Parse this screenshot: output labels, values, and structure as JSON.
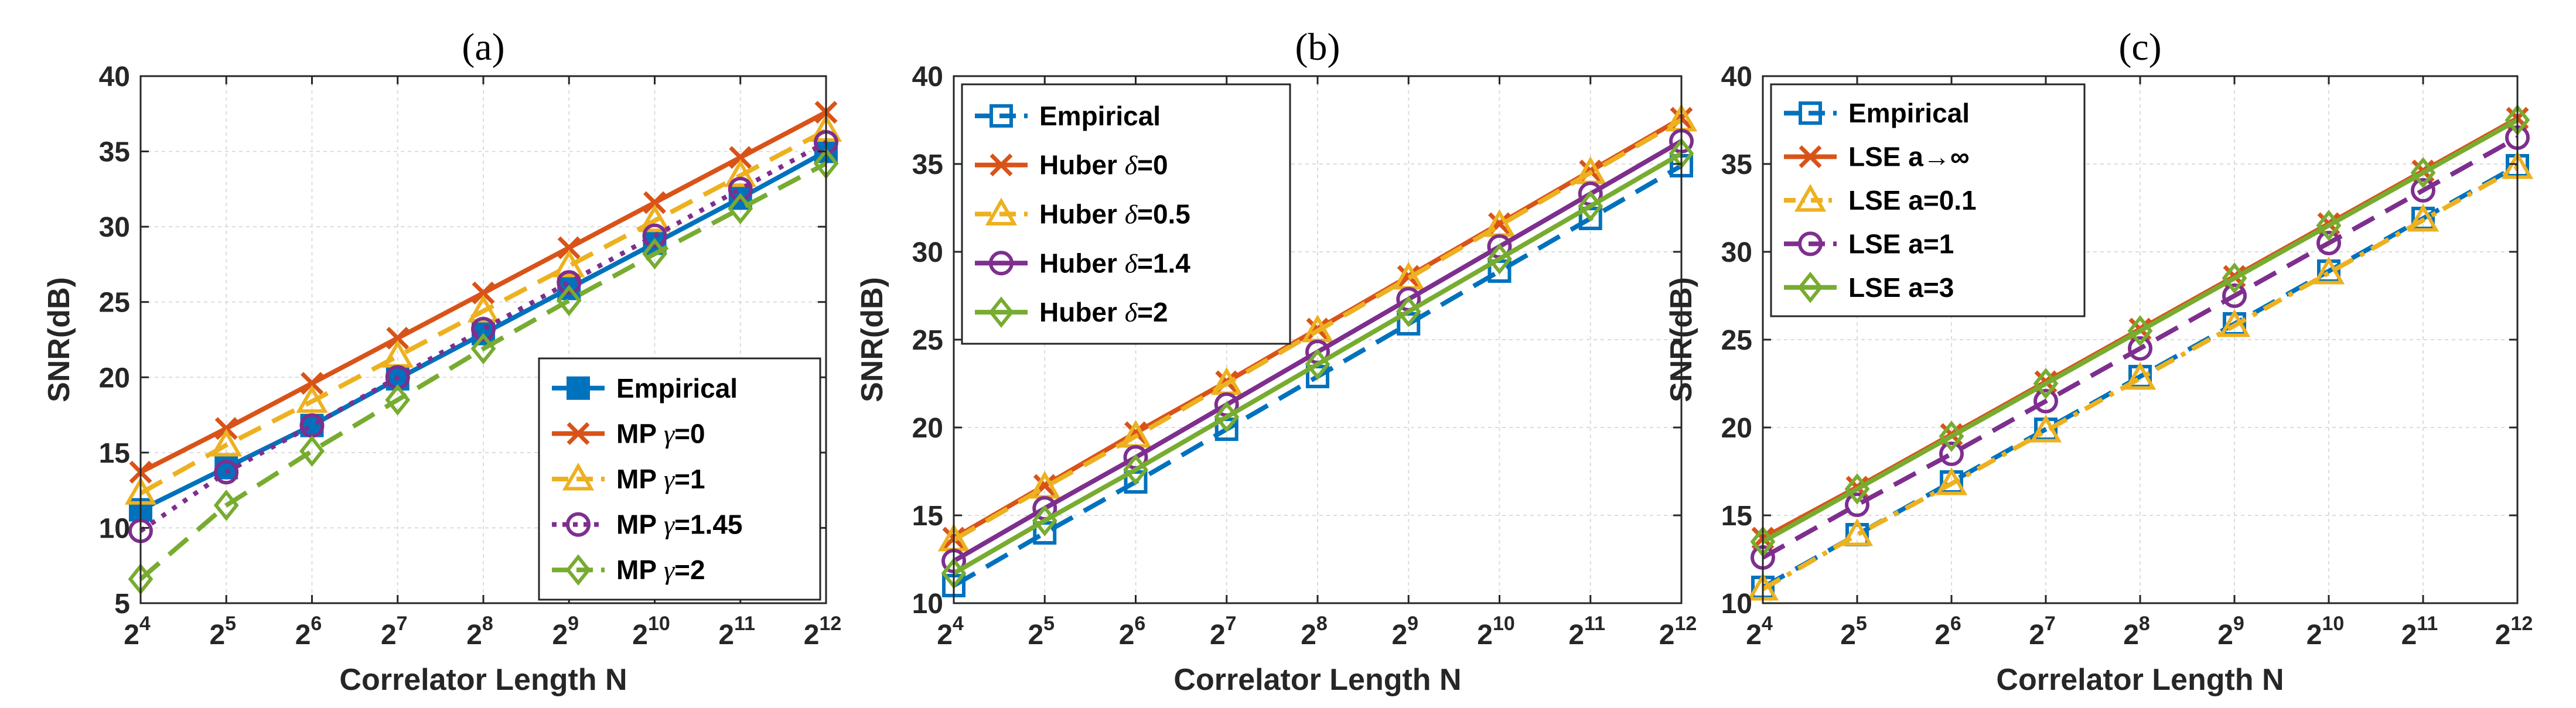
{
  "chart_data": [
    {
      "type": "line",
      "title": "(a)",
      "xlabel": "Correlator Length N",
      "ylabel": "SNR(dB)",
      "x": [
        4,
        5,
        6,
        7,
        8,
        9,
        10,
        11,
        12
      ],
      "x_tick_base": "2",
      "x_tick_exponents": [
        "4",
        "5",
        "6",
        "7",
        "8",
        "9",
        "10",
        "11",
        "12"
      ],
      "ylim": [
        5,
        40
      ],
      "yticks": [
        5,
        10,
        15,
        20,
        25,
        30,
        35,
        40
      ],
      "grid": true,
      "legend_position": "bottom-right",
      "series": [
        {
          "name": "Empirical",
          "legend_parts": [
            "Empirical"
          ],
          "color": "#0072BD",
          "dash": "solid",
          "marker": "square-filled",
          "values": [
            11.2,
            14.0,
            16.8,
            19.9,
            22.9,
            25.9,
            28.9,
            31.9,
            35.0
          ]
        },
        {
          "name": "MP γ=0",
          "legend_parts": [
            "MP ",
            "γ",
            "=0"
          ],
          "color": "#D95319",
          "dash": "solid",
          "marker": "x",
          "values": [
            13.7,
            16.6,
            19.6,
            22.6,
            25.6,
            28.6,
            31.6,
            34.6,
            37.6
          ]
        },
        {
          "name": "MP γ=1",
          "legend_parts": [
            "MP ",
            "γ",
            "=1"
          ],
          "color": "#EDB120",
          "dash": "dashed",
          "marker": "triangle",
          "values": [
            12.3,
            15.5,
            18.4,
            21.4,
            24.4,
            27.4,
            30.4,
            33.4,
            36.4
          ]
        },
        {
          "name": "MP γ=1.45",
          "legend_parts": [
            "MP ",
            "γ",
            "=1.45"
          ],
          "color": "#7E2F8E",
          "dash": "dotted",
          "marker": "circle",
          "values": [
            9.8,
            13.7,
            16.8,
            20.0,
            23.2,
            26.3,
            29.4,
            32.5,
            35.6
          ]
        },
        {
          "name": "MP γ=2",
          "legend_parts": [
            "MP ",
            "γ",
            "=2"
          ],
          "color": "#77AC30",
          "dash": "dashed",
          "marker": "diamond",
          "values": [
            6.6,
            11.5,
            15.1,
            18.5,
            21.9,
            25.1,
            28.2,
            31.2,
            34.2
          ]
        }
      ]
    },
    {
      "type": "line",
      "title": "(b)",
      "xlabel": "Correlator Length N",
      "ylabel": "SNR(dB)",
      "x": [
        4,
        5,
        6,
        7,
        8,
        9,
        10,
        11,
        12
      ],
      "x_tick_base": "2",
      "x_tick_exponents": [
        "4",
        "5",
        "6",
        "7",
        "8",
        "9",
        "10",
        "11",
        "12"
      ],
      "ylim": [
        10,
        40
      ],
      "yticks": [
        10,
        15,
        20,
        25,
        30,
        35,
        40
      ],
      "grid": true,
      "legend_position": "top-left",
      "series": [
        {
          "name": "Empirical",
          "legend_parts": [
            "Empirical"
          ],
          "color": "#0072BD",
          "dash": "dashed",
          "marker": "square",
          "values": [
            11.0,
            14.0,
            16.9,
            19.9,
            22.9,
            25.9,
            28.9,
            31.9,
            34.9
          ]
        },
        {
          "name": "Huber δ=0",
          "legend_parts": [
            "Huber ",
            "δ",
            "=0"
          ],
          "color": "#D95319",
          "dash": "solid",
          "marker": "x",
          "values": [
            13.7,
            16.7,
            19.7,
            22.6,
            25.6,
            28.6,
            31.6,
            34.6,
            37.6
          ]
        },
        {
          "name": "Huber δ=0.5",
          "legend_parts": [
            "Huber ",
            "δ",
            "=0.5"
          ],
          "color": "#EDB120",
          "dash": "dashed",
          "marker": "triangle",
          "values": [
            13.6,
            16.6,
            19.5,
            22.5,
            25.5,
            28.5,
            31.5,
            34.5,
            37.5
          ]
        },
        {
          "name": "Huber δ=1.4",
          "legend_parts": [
            "Huber ",
            "δ",
            "=1.4"
          ],
          "color": "#7E2F8E",
          "dash": "solid",
          "marker": "circle",
          "values": [
            12.4,
            15.4,
            18.3,
            21.3,
            24.3,
            27.3,
            30.3,
            33.3,
            36.3
          ]
        },
        {
          "name": "Huber δ=2",
          "legend_parts": [
            "Huber ",
            "δ",
            "=2"
          ],
          "color": "#77AC30",
          "dash": "solid",
          "marker": "diamond",
          "values": [
            11.7,
            14.7,
            17.6,
            20.6,
            23.6,
            26.6,
            29.6,
            32.6,
            35.6
          ]
        }
      ]
    },
    {
      "type": "line",
      "title": "(c)",
      "xlabel": "Correlator Length N",
      "ylabel": "SNR(dB)",
      "x": [
        4,
        5,
        6,
        7,
        8,
        9,
        10,
        11,
        12
      ],
      "x_tick_base": "2",
      "x_tick_exponents": [
        "4",
        "5",
        "6",
        "7",
        "8",
        "9",
        "10",
        "11",
        "12"
      ],
      "ylim": [
        10,
        40
      ],
      "yticks": [
        10,
        15,
        20,
        25,
        30,
        35,
        40
      ],
      "grid": true,
      "legend_position": "top-left",
      "series": [
        {
          "name": "Empirical",
          "legend_parts": [
            "Empirical"
          ],
          "color": "#0072BD",
          "dash": "dashed",
          "marker": "square",
          "values": [
            10.9,
            13.9,
            16.9,
            19.9,
            22.9,
            25.9,
            28.9,
            31.9,
            34.9
          ]
        },
        {
          "name": "LSE a→∞",
          "legend_parts": [
            "LSE a→∞"
          ],
          "color": "#D95319",
          "dash": "solid",
          "marker": "x",
          "values": [
            13.7,
            16.6,
            19.6,
            22.6,
            25.6,
            28.6,
            31.6,
            34.6,
            37.6
          ]
        },
        {
          "name": "LSE a=0.1",
          "legend_parts": [
            "LSE a=0.1"
          ],
          "color": "#EDB120",
          "dash": "dashdot",
          "marker": "triangle",
          "values": [
            10.8,
            13.9,
            16.8,
            19.8,
            22.8,
            25.8,
            28.8,
            31.8,
            34.8
          ]
        },
        {
          "name": "LSE a=1",
          "legend_parts": [
            "LSE a=1"
          ],
          "color": "#7E2F8E",
          "dash": "dashed",
          "marker": "circle",
          "values": [
            12.6,
            15.6,
            18.5,
            21.5,
            24.5,
            27.5,
            30.5,
            33.5,
            36.5
          ]
        },
        {
          "name": "LSE a=3",
          "legend_parts": [
            "LSE a=3"
          ],
          "color": "#77AC30",
          "dash": "solid",
          "marker": "diamond",
          "values": [
            13.5,
            16.5,
            19.5,
            22.5,
            25.5,
            28.5,
            31.5,
            34.5,
            37.5
          ]
        }
      ]
    }
  ]
}
